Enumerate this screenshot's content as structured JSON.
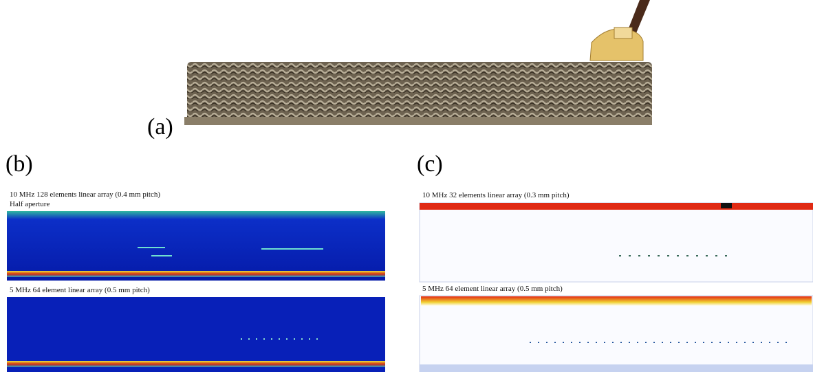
{
  "panels": {
    "a": {
      "label": "(a)"
    },
    "b": {
      "label": "(b)",
      "images": [
        {
          "caption": "10 MHz 128 elements linear array (0.4 mm pitch)",
          "subcaption": "Half aperture"
        },
        {
          "caption": "5 MHz 64 element linear array (0.5 mm pitch)"
        }
      ]
    },
    "c": {
      "label": "(c)",
      "images": [
        {
          "caption": "10 MHz 32 elements linear array (0.3 mm pitch)"
        },
        {
          "caption": "5 MHz 64 element linear array (0.5 mm pitch)"
        }
      ]
    }
  }
}
